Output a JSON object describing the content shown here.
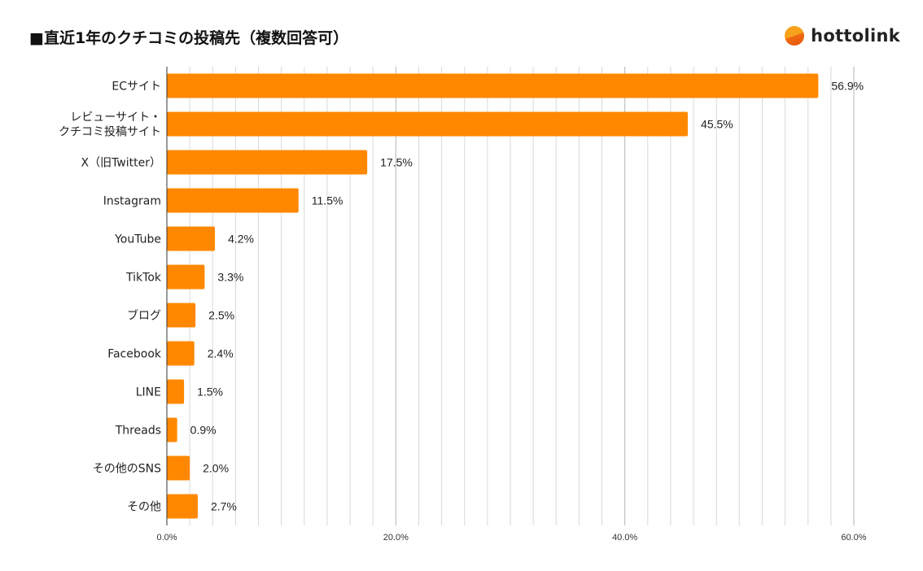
{
  "title": "■直近1年のクチコミの投稿先（複数回答可）",
  "brand": {
    "name": "hottolink",
    "logo_icon": "hottolink-logo-icon"
  },
  "colors": {
    "bar": "#ff8800",
    "gridline": "#d9d9d9",
    "axis": "#333333"
  },
  "chart_data": {
    "type": "bar",
    "orientation": "horizontal",
    "title": "■直近1年のクチコミの投稿先（複数回答可）",
    "xlabel": "",
    "ylabel": "",
    "xlim": [
      0,
      60
    ],
    "x_ticks": [
      "0.0%",
      "20.0%",
      "40.0%",
      "60.0%"
    ],
    "grid": true,
    "legend": "none",
    "categories": [
      [
        "ECサイト"
      ],
      [
        "レビューサイト・",
        "クチコミ投稿サイト"
      ],
      [
        "X（旧Twitter）"
      ],
      [
        "Instagram"
      ],
      [
        "YouTube"
      ],
      [
        "TikTok"
      ],
      [
        "ブログ"
      ],
      [
        "Facebook"
      ],
      [
        "LINE"
      ],
      [
        "Threads"
      ],
      [
        "その他のSNS"
      ],
      [
        "その他"
      ]
    ],
    "values": [
      56.9,
      45.5,
      17.5,
      11.5,
      4.2,
      3.3,
      2.5,
      2.4,
      1.5,
      0.9,
      2.0,
      2.7
    ],
    "value_labels": [
      "56.9%",
      "45.5%",
      "17.5%",
      "11.5%",
      "4.2%",
      "3.3%",
      "2.5%",
      "2.4%",
      "1.5%",
      "0.9%",
      "2.0%",
      "2.7%"
    ]
  }
}
